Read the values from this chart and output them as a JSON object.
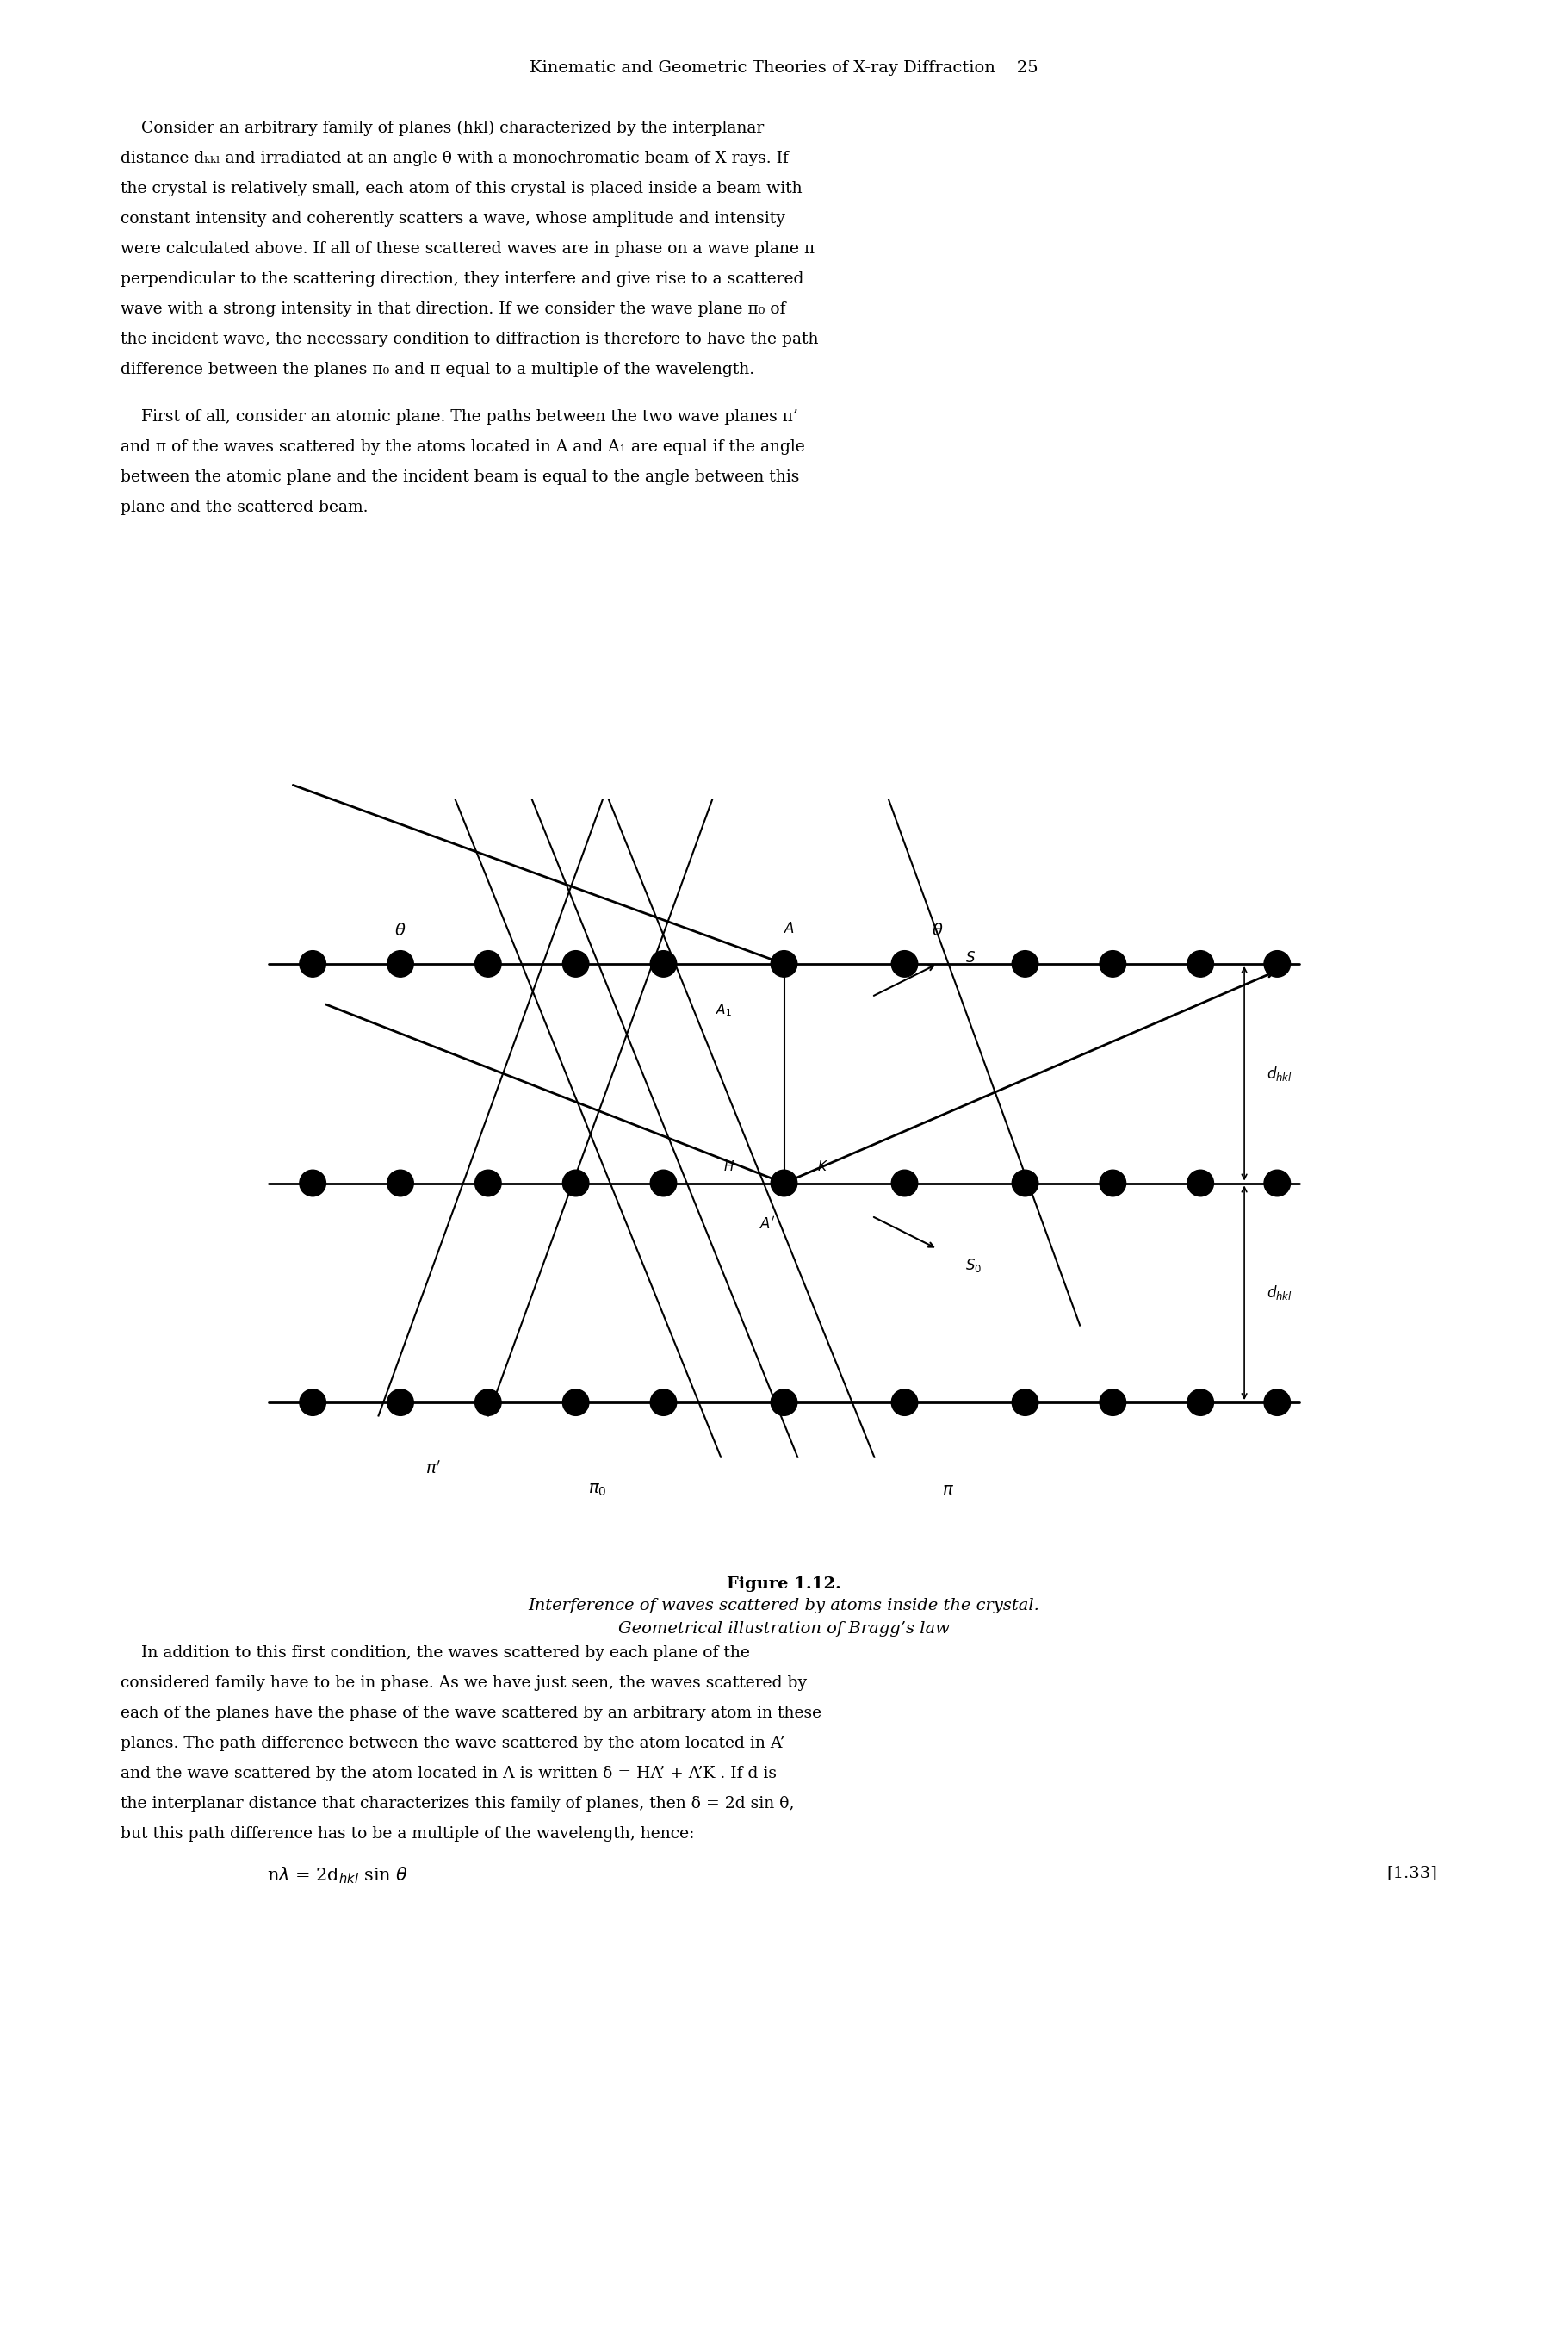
{
  "page_header": "Kinematic and Geometric Theories of X-ray Diffraction    25",
  "para1": "Consider an arbitrary family of planes (hkl) characterized by the interplanar\ndistance dₖₖₗ and irradiated at an angle θ with a monochromatic beam of X-rays. If\nthe crystal is relatively small, each atom of this crystal is placed inside a beam with\nconstant intensity and coherently scatters a wave, whose amplitude and intensity\nwere calculated above. If all of these scattered waves are in phase on a wave plane π\nperpendicular to the scattering direction, they interfere and give rise to a scattered\nwave with a strong intensity in that direction. If we consider the wave plane π₀ of\nthe incident wave, the necessary condition to diffraction is therefore to have the path\ndifference between the planes π₀ and π equal to a multiple of the wavelength.",
  "para2": "First of all, consider an atomic plane. The paths between the two wave planes π’\nand π of the waves scattered by the atoms located in A and A₁ are equal if the angle\nbetween the atomic plane and the incident beam is equal to the angle between this\nplane and the scattered beam.",
  "fig_caption_bold": "Figure 1.12.",
  "fig_caption_italic": " Interference of waves scattered by atoms inside the crystal.\nGeometrical illustration of Bragg’s law",
  "para3": "In addition to this first condition, the waves scattered by each plane of the\nconsidered family have to be in phase. As we have just seen, the waves scattered by\neach of the planes have the phase of the wave scattered by an arbitrary atom in these\nplanes. The path difference between the wave scattered by the atom located in A’\nand the wave scattered by the atom located in A is written δ = HA’ + A’K . If d is\nthe interplanar distance that characterizes this family of planes, then δ = 2d sin θ,\nbut this path difference has to be a multiple of the wavelength, hence:",
  "equation": "nλ = 2dₖₖₗ sin θ",
  "eq_label": "[1.33]",
  "bg_color": "#ffffff",
  "text_color": "#000000",
  "fig_width": 18.01,
  "fig_height": 27.0
}
